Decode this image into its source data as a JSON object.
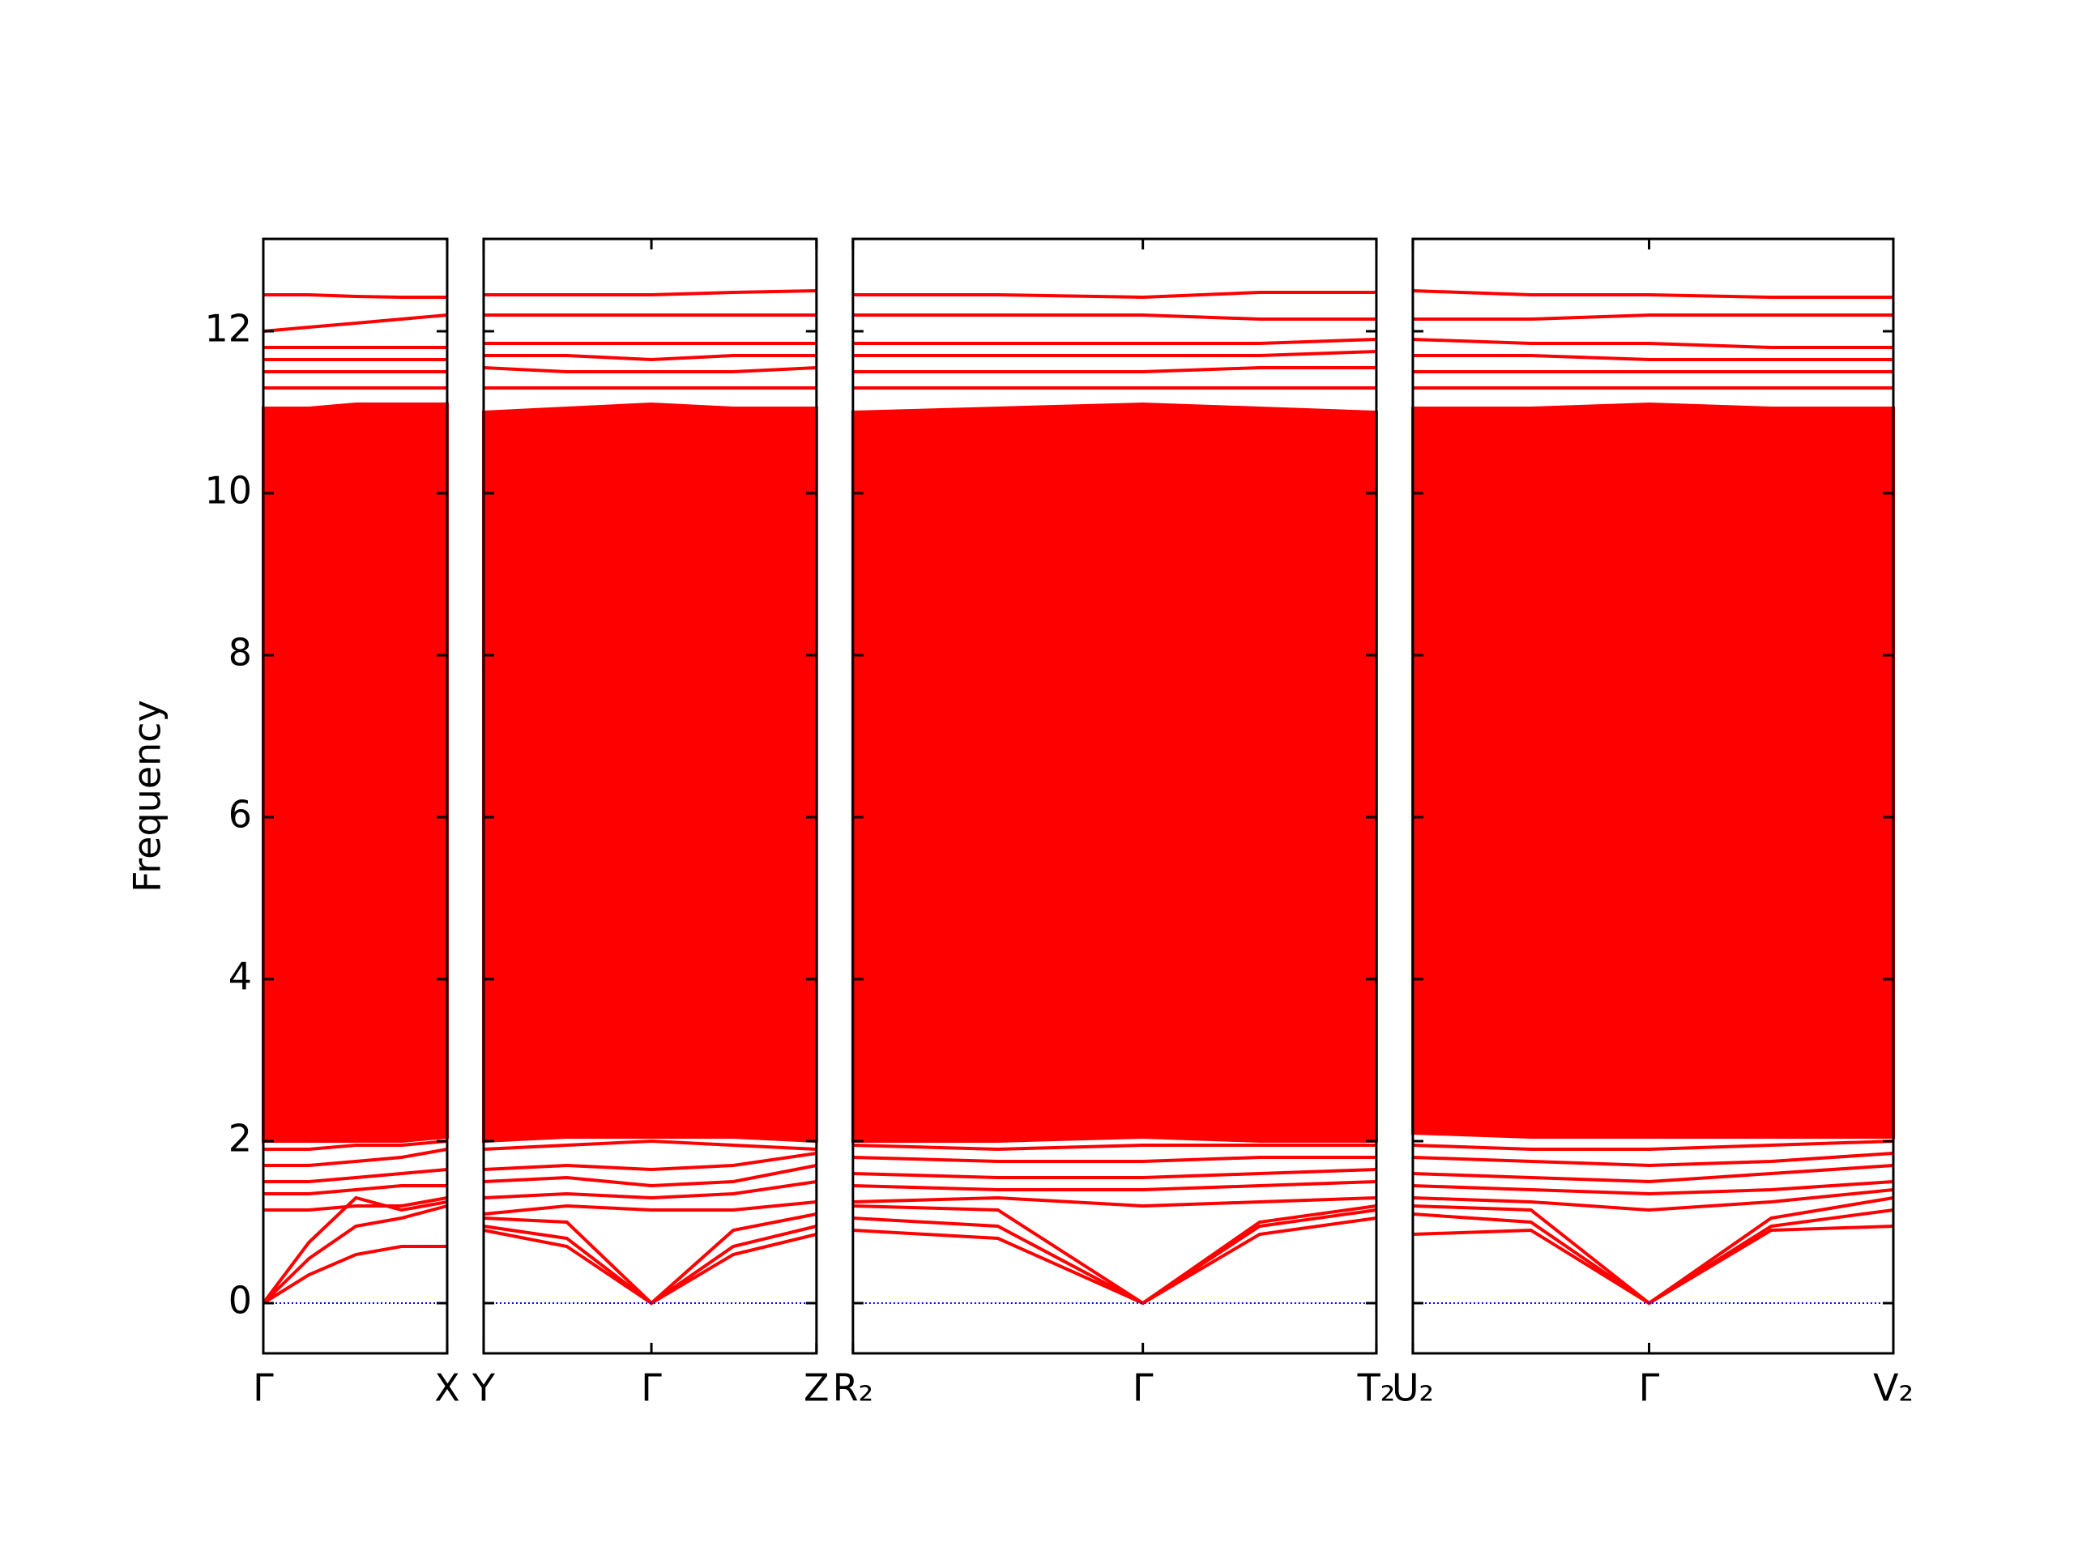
{
  "chart_data": [
    {
      "type": "line",
      "ylabel": "Frequency",
      "ylim": [
        -0.62,
        13.14
      ],
      "yticks": [
        0,
        2,
        4,
        6,
        8,
        10,
        12
      ],
      "xlim": [
        0,
        1.37
      ],
      "xticks": [
        {
          "value": 0,
          "label": "Γ"
        },
        {
          "value": 1.37,
          "label": "X"
        }
      ],
      "x": [
        0,
        0.34,
        0.69,
        1.03,
        1.37
      ],
      "color": "#ff0000",
      "hline": 0,
      "hline_color": "#0000ff",
      "band_fill": {
        "lower": [
          2.0,
          2.0,
          2.0,
          2.0,
          2.05
        ],
        "upper": [
          11.05,
          11.05,
          11.1,
          11.1,
          11.1
        ]
      },
      "series": [
        {
          "values": [
            0,
            0.35,
            0.6,
            0.7,
            0.7
          ]
        },
        {
          "values": [
            0,
            0.55,
            0.95,
            1.05,
            1.2
          ]
        },
        {
          "values": [
            0,
            0.75,
            1.3,
            1.15,
            1.25
          ]
        },
        {
          "values": [
            1.15,
            1.15,
            1.2,
            1.2,
            1.3
          ]
        },
        {
          "values": [
            1.35,
            1.35,
            1.4,
            1.45,
            1.45
          ]
        },
        {
          "values": [
            1.5,
            1.5,
            1.55,
            1.6,
            1.65
          ]
        },
        {
          "values": [
            1.7,
            1.7,
            1.75,
            1.8,
            1.9
          ]
        },
        {
          "values": [
            1.9,
            1.9,
            1.95,
            1.95,
            2.0
          ]
        },
        {
          "values": [
            11.3,
            11.3,
            11.3,
            11.3,
            11.3
          ]
        },
        {
          "values": [
            11.5,
            11.5,
            11.5,
            11.5,
            11.5
          ]
        },
        {
          "values": [
            11.65,
            11.65,
            11.65,
            11.65,
            11.65
          ]
        },
        {
          "values": [
            11.8,
            11.8,
            11.8,
            11.8,
            11.8
          ]
        },
        {
          "values": [
            12.0,
            12.05,
            12.1,
            12.15,
            12.2
          ]
        },
        {
          "values": [
            12.45,
            12.45,
            12.43,
            12.42,
            12.42
          ]
        }
      ]
    },
    {
      "type": "line",
      "sharey": true,
      "xlim": [
        0,
        2.48
      ],
      "xticks": [
        {
          "value": 0,
          "label": "Y"
        },
        {
          "value": 1.25,
          "label": "Γ"
        },
        {
          "value": 2.48,
          "label": "Z"
        }
      ],
      "x": [
        0,
        0.62,
        1.25,
        1.86,
        2.48
      ],
      "color": "#ff0000",
      "hline": 0,
      "hline_color": "#0000ff",
      "band_fill": {
        "lower": [
          2.0,
          2.05,
          2.05,
          2.05,
          2.0
        ],
        "upper": [
          11.0,
          11.05,
          11.1,
          11.05,
          11.05
        ]
      },
      "series": [
        {
          "values": [
            0.9,
            0.7,
            0,
            0.6,
            0.85
          ]
        },
        {
          "values": [
            0.95,
            0.8,
            0,
            0.7,
            0.95
          ]
        },
        {
          "values": [
            1.05,
            1.0,
            0,
            0.9,
            1.1
          ]
        },
        {
          "values": [
            1.1,
            1.2,
            1.15,
            1.15,
            1.25
          ]
        },
        {
          "values": [
            1.3,
            1.35,
            1.3,
            1.35,
            1.5
          ]
        },
        {
          "values": [
            1.5,
            1.55,
            1.45,
            1.5,
            1.7
          ]
        },
        {
          "values": [
            1.65,
            1.7,
            1.65,
            1.7,
            1.85
          ]
        },
        {
          "values": [
            1.9,
            1.95,
            2.0,
            1.95,
            1.9
          ]
        },
        {
          "values": [
            11.3,
            11.3,
            11.3,
            11.3,
            11.3
          ]
        },
        {
          "values": [
            11.55,
            11.5,
            11.5,
            11.5,
            11.55
          ]
        },
        {
          "values": [
            11.7,
            11.7,
            11.65,
            11.7,
            11.7
          ]
        },
        {
          "values": [
            11.85,
            11.85,
            11.85,
            11.85,
            11.85
          ]
        },
        {
          "values": [
            12.2,
            12.2,
            12.2,
            12.2,
            12.2
          ]
        },
        {
          "values": [
            12.45,
            12.45,
            12.45,
            12.48,
            12.5
          ]
        }
      ]
    },
    {
      "type": "line",
      "sharey": true,
      "xlim": [
        0,
        3.9
      ],
      "xticks": [
        {
          "value": 0,
          "label": "R₂"
        },
        {
          "value": 2.16,
          "label": "Γ"
        },
        {
          "value": 3.9,
          "label": "T₂"
        }
      ],
      "x": [
        0,
        1.08,
        2.16,
        3.03,
        3.9
      ],
      "color": "#ff0000",
      "hline": 0,
      "hline_color": "#0000ff",
      "band_fill": {
        "lower": [
          2.0,
          2.0,
          2.05,
          2.0,
          2.0
        ],
        "upper": [
          11.0,
          11.05,
          11.1,
          11.05,
          11.0
        ]
      },
      "series": [
        {
          "values": [
            0.9,
            0.8,
            0,
            0.85,
            1.05
          ]
        },
        {
          "values": [
            1.05,
            0.95,
            0,
            0.95,
            1.15
          ]
        },
        {
          "values": [
            1.2,
            1.15,
            0,
            1.0,
            1.2
          ]
        },
        {
          "values": [
            1.25,
            1.3,
            1.2,
            1.25,
            1.3
          ]
        },
        {
          "values": [
            1.45,
            1.4,
            1.4,
            1.45,
            1.5
          ]
        },
        {
          "values": [
            1.6,
            1.55,
            1.55,
            1.6,
            1.65
          ]
        },
        {
          "values": [
            1.8,
            1.75,
            1.75,
            1.8,
            1.8
          ]
        },
        {
          "values": [
            1.95,
            1.9,
            1.95,
            1.95,
            1.95
          ]
        },
        {
          "values": [
            11.3,
            11.3,
            11.3,
            11.3,
            11.3
          ]
        },
        {
          "values": [
            11.5,
            11.5,
            11.5,
            11.55,
            11.55
          ]
        },
        {
          "values": [
            11.7,
            11.7,
            11.7,
            11.7,
            11.75
          ]
        },
        {
          "values": [
            11.85,
            11.85,
            11.85,
            11.85,
            11.9
          ]
        },
        {
          "values": [
            12.2,
            12.2,
            12.2,
            12.15,
            12.15
          ]
        },
        {
          "values": [
            12.45,
            12.45,
            12.42,
            12.48,
            12.48
          ]
        }
      ]
    },
    {
      "type": "line",
      "sharey": true,
      "xlim": [
        0,
        3.58
      ],
      "xticks": [
        {
          "value": 0,
          "label": "U₂"
        },
        {
          "value": 1.76,
          "label": "Γ"
        },
        {
          "value": 3.58,
          "label": "V₂"
        }
      ],
      "x": [
        0,
        0.88,
        1.76,
        2.67,
        3.58
      ],
      "color": "#ff0000",
      "hline": 0,
      "hline_color": "#0000ff",
      "band_fill": {
        "lower": [
          2.1,
          2.05,
          2.05,
          2.05,
          2.05
        ],
        "upper": [
          11.05,
          11.05,
          11.1,
          11.05,
          11.05
        ]
      },
      "series": [
        {
          "values": [
            0.85,
            0.9,
            0,
            0.9,
            0.95
          ]
        },
        {
          "values": [
            1.1,
            1.0,
            0,
            0.95,
            1.15
          ]
        },
        {
          "values": [
            1.2,
            1.15,
            0,
            1.05,
            1.3
          ]
        },
        {
          "values": [
            1.3,
            1.25,
            1.15,
            1.25,
            1.4
          ]
        },
        {
          "values": [
            1.45,
            1.4,
            1.35,
            1.4,
            1.5
          ]
        },
        {
          "values": [
            1.6,
            1.55,
            1.5,
            1.6,
            1.7
          ]
        },
        {
          "values": [
            1.8,
            1.75,
            1.7,
            1.75,
            1.85
          ]
        },
        {
          "values": [
            1.95,
            1.9,
            1.9,
            1.95,
            2.0
          ]
        },
        {
          "values": [
            11.3,
            11.3,
            11.3,
            11.3,
            11.3
          ]
        },
        {
          "values": [
            11.5,
            11.5,
            11.5,
            11.5,
            11.5
          ]
        },
        {
          "values": [
            11.7,
            11.7,
            11.65,
            11.65,
            11.65
          ]
        },
        {
          "values": [
            11.9,
            11.85,
            11.85,
            11.8,
            11.8
          ]
        },
        {
          "values": [
            12.15,
            12.15,
            12.2,
            12.2,
            12.2
          ]
        },
        {
          "values": [
            12.5,
            12.45,
            12.45,
            12.42,
            12.42
          ]
        }
      ]
    }
  ]
}
